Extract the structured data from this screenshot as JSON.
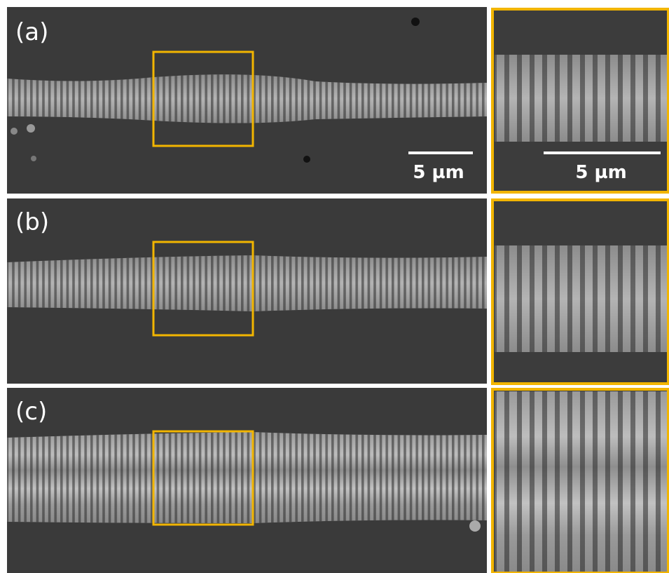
{
  "panels": [
    {
      "label": "(a)",
      "scale_bar": "5 µm",
      "inset_scale_bar": "5 µm"
    },
    {
      "label": "(b)"
    },
    {
      "label": "(c)"
    }
  ]
}
